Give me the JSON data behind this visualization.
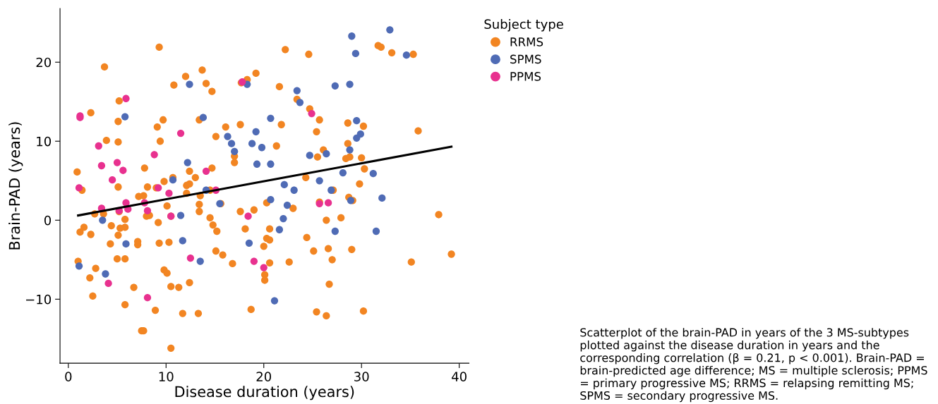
{
  "chart_data": {
    "type": "scatter",
    "xlabel": "Disease duration (years)",
    "ylabel": "Brain-PAD (years)",
    "legend_title": "Subject type",
    "legend": "top right",
    "grid": false,
    "marker": "circle",
    "xlim": [
      -0.85,
      41.0
    ],
    "ylim": [
      -18.1,
      26.8
    ],
    "xticks": [
      0,
      10,
      20,
      30,
      40
    ],
    "yticks": [
      {
        "value": -10,
        "label": "−10"
      },
      0,
      10,
      20
    ],
    "series": [
      {
        "name": "RRMS",
        "color": "#f28522",
        "x": [
          0.9,
          1.4,
          1.2,
          1.6,
          2.3,
          1.0,
          2.3,
          3.7,
          3.9,
          2.7,
          3.6,
          2.8,
          2.2,
          2.5,
          4.4,
          4.3,
          5.1,
          5.2,
          5.1,
          5.1,
          5.2,
          5.3,
          5.8,
          5.1,
          5.0,
          5.8,
          5.8,
          5.8,
          6.7,
          7.1,
          7.1,
          7.2,
          7.7,
          7.5,
          7.7,
          7.8,
          8.1,
          8.0,
          8.3,
          8.9,
          9.0,
          9.1,
          9.4,
          9.7,
          9.3,
          9.2,
          9.3,
          9.8,
          10.1,
          9.8,
          10.3,
          10.5,
          10.5,
          10.1,
          10.7,
          10.5,
          10.8,
          11.3,
          11.7,
          12.0,
          12.1,
          12.1,
          12.4,
          12.4,
          12.4,
          13.0,
          13.4,
          13.4,
          13.4,
          13.5,
          13.3,
          13.7,
          14.1,
          14.7,
          14.7,
          14.5,
          14.5,
          14.8,
          15.1,
          15.2,
          15.1,
          15.6,
          15.8,
          16.1,
          16.8,
          17.0,
          17.0,
          17.6,
          17.7,
          18.1,
          17.6,
          18.3,
          18.7,
          19.0,
          19.2,
          20.0,
          20.1,
          20.1,
          20.3,
          20.3,
          20.6,
          20.6,
          20.6,
          21.3,
          21.6,
          21.8,
          22.2,
          22.6,
          23.0,
          23.4,
          24.3,
          24.4,
          24.6,
          24.7,
          25.1,
          25.4,
          25.5,
          25.4,
          25.7,
          25.7,
          26.1,
          26.4,
          26.6,
          26.7,
          26.4,
          27.0,
          27.1,
          27.9,
          28.4,
          28.6,
          28.6,
          28.8,
          28.7,
          29.0,
          29.1,
          29.8,
          30.0,
          30.2,
          30.3,
          30.2,
          31.7,
          32.0,
          33.1,
          35.3,
          35.8,
          35.1,
          37.9,
          39.2
        ],
        "values": [
          6.1,
          3.8,
          -1.5,
          -0.9,
          -1.8,
          -5.2,
          13.6,
          19.4,
          10.1,
          0.8,
          0.8,
          -6.1,
          -7.3,
          -9.6,
          -0.7,
          -3.0,
          9.9,
          15.1,
          12.5,
          4.2,
          1.1,
          -1.0,
          -0.9,
          -1.9,
          -4.9,
          -4.9,
          -10.7,
          0.1,
          -8.5,
          -2.7,
          -3.1,
          3.0,
          3.1,
          -14.0,
          -14.0,
          6.6,
          4.2,
          0.5,
          0.6,
          -11.4,
          4.1,
          11.8,
          10.0,
          12.7,
          21.9,
          -0.3,
          -2.9,
          -6.3,
          -6.7,
          4.9,
          -2.8,
          -8.4,
          0.5,
          1.8,
          5.4,
          -16.2,
          17.1,
          -8.5,
          -11.8,
          18.2,
          4.4,
          3.4,
          4.6,
          6.2,
          -7.9,
          5.4,
          12.7,
          2.0,
          1.1,
          3.1,
          -11.8,
          19.0,
          17.3,
          16.3,
          6.6,
          0.3,
          3.8,
          -0.6,
          10.6,
          -1.4,
          -3.9,
          2.1,
          -4.4,
          11.8,
          -5.5,
          7.3,
          8.1,
          12.1,
          17.4,
          -1.1,
          1.1,
          17.8,
          -11.3,
          1.3,
          18.6,
          -3.3,
          -6.9,
          -7.6,
          -2.3,
          2.2,
          -2.5,
          -5.4,
          -1.1,
          9.4,
          16.9,
          12.1,
          21.6,
          -5.3,
          1.5,
          15.3,
          5.4,
          -2.2,
          21.0,
          14.1,
          -3.9,
          11.2,
          8.0,
          -11.6,
          2.3,
          12.7,
          8.9,
          0.0,
          -3.6,
          -8.1,
          -12.1,
          -5.0,
          3.8,
          0.3,
          7.8,
          12.3,
          9.7,
          8.0,
          2.9,
          -3.7,
          2.5,
          4.6,
          7.9,
          11.9,
          6.5,
          -11.5,
          22.1,
          21.9,
          21.2,
          21.0,
          11.3,
          -5.3,
          0.7,
          -4.3
        ]
      },
      {
        "name": "SPMS",
        "color": "#4f6bb5",
        "x": [
          3.5,
          1.1,
          3.8,
          5.9,
          11.5,
          11.7,
          13.5,
          18.5,
          22.0,
          21.6,
          27.3,
          31.5,
          21.1,
          32.9,
          29.0,
          29.4,
          34.6,
          27.3,
          28.8,
          23.4,
          23.7,
          20.7,
          29.5,
          29.9,
          29.5,
          19.8,
          19.3,
          20.7,
          12.4,
          18.3,
          5.8,
          13.8,
          19.2,
          18.8,
          16.3,
          16.7,
          17.0,
          12.2,
          10.7,
          14.1,
          15.5,
          24.7,
          26.4,
          28.8,
          28.1,
          31.2,
          25.7,
          22.1,
          23.1,
          26.9,
          20.7,
          22.4,
          28.9,
          32.1
        ],
        "values": [
          0.0,
          -5.8,
          -6.8,
          -3.0,
          0.6,
          -2.6,
          -5.2,
          -2.9,
          0.2,
          -1.2,
          -1.4,
          -1.4,
          -10.2,
          24.1,
          23.3,
          21.1,
          20.9,
          17.0,
          17.2,
          16.4,
          14.9,
          12.9,
          12.6,
          10.9,
          10.4,
          9.2,
          7.1,
          7.1,
          17.2,
          17.2,
          13.1,
          13.0,
          11.2,
          9.7,
          10.6,
          9.7,
          8.7,
          7.3,
          5.1,
          3.8,
          2.1,
          8.2,
          8.4,
          8.9,
          6.0,
          5.9,
          5.0,
          4.5,
          3.8,
          3.8,
          2.6,
          1.9,
          2.5,
          2.8
        ]
      },
      {
        "name": "PPMS",
        "color": "#e8318f",
        "x": [
          12.5,
          4.1,
          8.1,
          19.0,
          20.0,
          18.4,
          24.9,
          25.7,
          26.6,
          1.2,
          1.2,
          5.9,
          11.5,
          3.1,
          8.8,
          3.4,
          5.0,
          5.6,
          4.5,
          1.1,
          9.2,
          14.1,
          15.1,
          10.3,
          5.9,
          6.1,
          5.2,
          3.4,
          7.8,
          8.1,
          10.5,
          17.8
        ],
        "values": [
          -4.8,
          -8.0,
          -9.8,
          -5.2,
          -6.0,
          0.5,
          13.5,
          2.1,
          2.2,
          13.2,
          13.0,
          15.4,
          11.0,
          9.4,
          8.3,
          6.9,
          7.3,
          6.3,
          5.1,
          4.1,
          4.1,
          6.2,
          3.8,
          3.4,
          2.2,
          1.4,
          1.2,
          1.5,
          2.2,
          1.2,
          0.5,
          17.5
        ]
      },
      {
        "type": "line",
        "marker": "none",
        "color": "#000000",
        "x": [
          1.0,
          39.2
        ],
        "values": [
          0.6,
          9.3
        ]
      }
    ],
    "annotations": [
      "Scatterplot of the brain-PAD in years of the 3 MS-subtypes plotted against the disease duration in years and the corresponding correlation (β = 0.21, p < 0.001). Brain-PAD = brain-predicted age difference; MS = multiple sclerosis; PPMS = primary progressive MS; RRMS = relapsing remitting MS; SPMS = secondary progressive MS."
    ]
  }
}
